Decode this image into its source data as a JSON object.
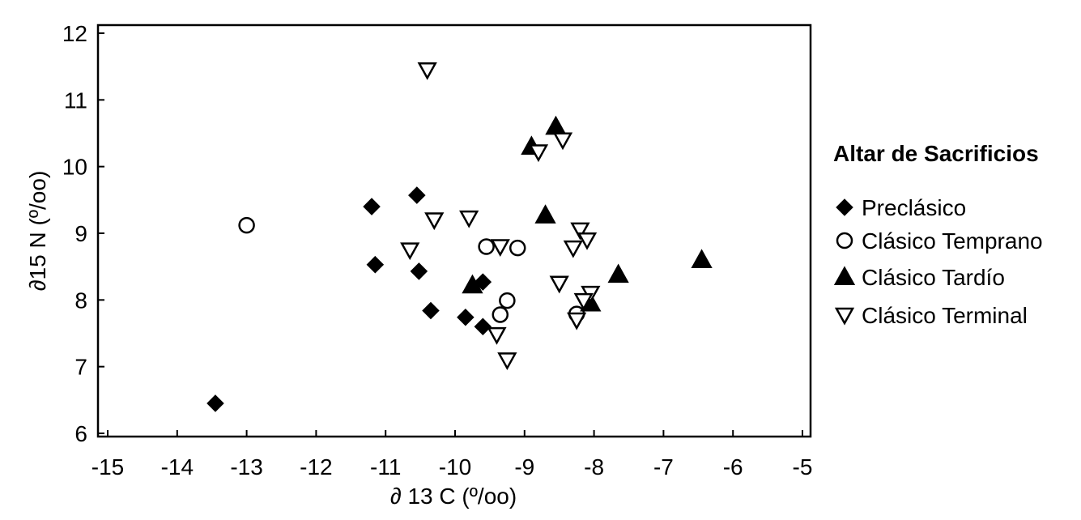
{
  "chart_data": {
    "type": "scatter",
    "xlabel": "∂ 13 C (º/oo)",
    "ylabel": "∂15 N (º/oo)",
    "xlim": [
      -15,
      -5
    ],
    "ylim": [
      6,
      12
    ],
    "xticks": [
      -15,
      -14,
      -13,
      -12,
      -11,
      -10,
      -9,
      -8,
      -7,
      -6,
      -5
    ],
    "yticks": [
      6,
      7,
      8,
      9,
      10,
      11,
      12
    ],
    "grid": false,
    "legend": {
      "title": "Altar de Sacrificios",
      "position": "right"
    },
    "series": [
      {
        "name": "Preclásico",
        "marker": "diamond",
        "fill": "#000000",
        "points": [
          [
            -13.45,
            6.45
          ],
          [
            -11.2,
            9.4
          ],
          [
            -11.15,
            8.53
          ],
          [
            -10.55,
            9.57
          ],
          [
            -10.52,
            8.43
          ],
          [
            -10.35,
            7.84
          ],
          [
            -9.85,
            7.74
          ],
          [
            -9.6,
            7.6
          ],
          [
            -9.6,
            8.27
          ]
        ]
      },
      {
        "name": "Clásico Temprano",
        "marker": "circle",
        "fill": "#ffffff",
        "points": [
          [
            -13.0,
            9.12
          ],
          [
            -9.55,
            8.8
          ],
          [
            -9.1,
            8.78
          ],
          [
            -9.25,
            7.99
          ],
          [
            -9.35,
            7.78
          ],
          [
            -8.25,
            7.79
          ]
        ]
      },
      {
        "name": "Clásico Tardío",
        "marker": "triangle-up",
        "fill": "#000000",
        "points": [
          [
            -8.55,
            10.6
          ],
          [
            -8.9,
            10.3
          ],
          [
            -8.7,
            9.27
          ],
          [
            -9.75,
            8.22
          ],
          [
            -8.05,
            7.95
          ],
          [
            -7.65,
            8.38
          ],
          [
            -6.45,
            8.6
          ]
        ]
      },
      {
        "name": "Clásico Terminal",
        "marker": "triangle-down",
        "fill": "#ffffff",
        "points": [
          [
            -10.4,
            11.45
          ],
          [
            -8.8,
            10.22
          ],
          [
            -8.45,
            10.4
          ],
          [
            -10.3,
            9.2
          ],
          [
            -9.8,
            9.23
          ],
          [
            -10.65,
            8.75
          ],
          [
            -9.35,
            8.8
          ],
          [
            -8.2,
            9.05
          ],
          [
            -8.1,
            8.9
          ],
          [
            -8.3,
            8.78
          ],
          [
            -8.5,
            8.25
          ],
          [
            -8.05,
            8.1
          ],
          [
            -8.15,
            7.99
          ],
          [
            -9.4,
            7.48
          ],
          [
            -9.25,
            7.1
          ],
          [
            -8.25,
            7.7
          ]
        ]
      }
    ]
  }
}
